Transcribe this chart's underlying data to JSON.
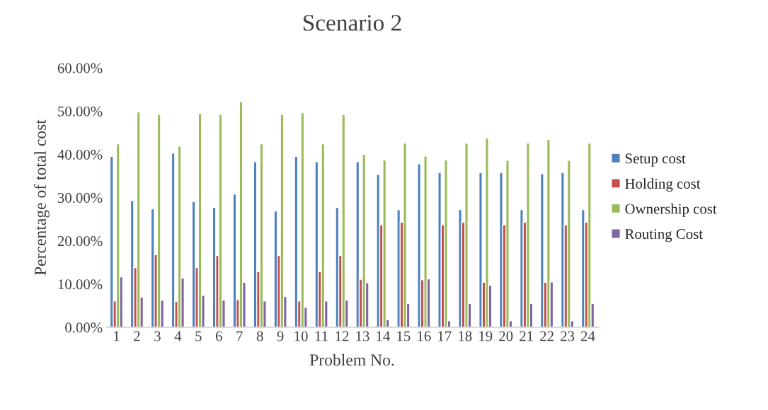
{
  "chart_data": {
    "type": "bar",
    "title": "Scenario 2",
    "xlabel": "Problem No.",
    "ylabel": "Percentage of total cost",
    "categories": [
      "1",
      "2",
      "3",
      "4",
      "5",
      "6",
      "7",
      "8",
      "9",
      "10",
      "11",
      "12",
      "13",
      "14",
      "15",
      "16",
      "17",
      "18",
      "19",
      "20",
      "21",
      "22",
      "23",
      "24"
    ],
    "series": [
      {
        "name": "Setup cost",
        "color": "#4f81bd",
        "values": [
          39.5,
          29.3,
          27.4,
          40.3,
          29.1,
          27.7,
          30.8,
          38.3,
          26.9,
          39.5,
          38.3,
          27.7,
          38.3,
          35.4,
          27.2,
          37.8,
          35.8,
          27.2,
          35.8,
          35.8,
          27.2,
          35.5,
          35.8,
          27.2
        ]
      },
      {
        "name": "Holding cost",
        "color": "#c0504d",
        "values": [
          6.1,
          13.8,
          16.8,
          6.0,
          13.8,
          16.6,
          6.4,
          12.9,
          16.6,
          6.1,
          12.9,
          16.6,
          11.1,
          23.7,
          24.3,
          11.0,
          23.7,
          24.3,
          10.4,
          23.7,
          24.3,
          10.4,
          23.7,
          24.3
        ]
      },
      {
        "name": "Ownership cost",
        "color": "#9bbb59",
        "values": [
          42.4,
          49.8,
          49.2,
          41.9,
          49.5,
          49.2,
          52.2,
          42.4,
          49.2,
          49.6,
          42.4,
          49.2,
          40.0,
          38.7,
          42.6,
          39.6,
          38.7,
          42.6,
          43.8,
          38.6,
          42.6,
          43.4,
          38.6,
          42.6
        ]
      },
      {
        "name": "Routing Cost",
        "color": "#8064a2",
        "values": [
          11.7,
          7.0,
          6.3,
          11.4,
          7.4,
          6.3,
          10.4,
          6.1,
          7.1,
          4.6,
          6.1,
          6.3,
          10.3,
          1.8,
          5.5,
          11.2,
          1.5,
          5.5,
          9.7,
          1.5,
          5.5,
          10.5,
          1.5,
          5.5
        ]
      }
    ],
    "ylim": [
      0,
      60
    ],
    "yticks": [
      {
        "value": 0,
        "label": "0.00%"
      },
      {
        "value": 10,
        "label": "10.00%"
      },
      {
        "value": 20,
        "label": "20.00%"
      },
      {
        "value": 30,
        "label": "30.00%"
      },
      {
        "value": 40,
        "label": "40.00%"
      },
      {
        "value": 50,
        "label": "50.00%"
      },
      {
        "value": 60,
        "label": "60.00%"
      }
    ],
    "grid": false,
    "legend": "right"
  }
}
